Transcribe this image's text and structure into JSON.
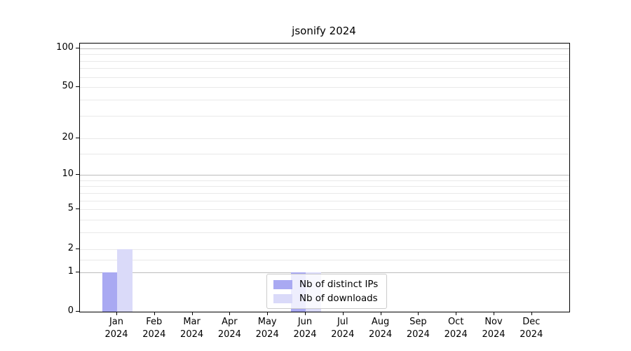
{
  "chart_data": {
    "type": "bar",
    "title": "jsonify 2024",
    "xlabel": "",
    "ylabel": "",
    "categories": [
      "Jan 2024",
      "Feb 2024",
      "Mar 2024",
      "Apr 2024",
      "May 2024",
      "Jun 2024",
      "Jul 2024",
      "Aug 2024",
      "Sep 2024",
      "Oct 2024",
      "Nov 2024",
      "Dec 2024"
    ],
    "series": [
      {
        "name": "Nb of distinct IPs",
        "color": "#a9a9f2",
        "values": [
          1,
          0,
          0,
          0,
          0,
          1,
          0,
          0,
          0,
          0,
          0,
          0
        ]
      },
      {
        "name": "Nb of downloads",
        "color": "#dadaf9",
        "values": [
          2,
          0,
          0,
          0,
          0,
          1,
          0,
          0,
          0,
          0,
          0,
          0
        ]
      }
    ],
    "yscale": "log1p",
    "ylim": [
      0,
      108
    ],
    "yticks": [
      0,
      1,
      2,
      5,
      10,
      20,
      50,
      100
    ],
    "major_gridlines": [
      1,
      10,
      100
    ],
    "mid_gridlines": [
      2,
      5,
      20,
      50
    ],
    "minor_gridlines": [
      1.5,
      3,
      4,
      6,
      7,
      8,
      9,
      15,
      30,
      40,
      60,
      70,
      80,
      90
    ],
    "grid": true,
    "legend": {
      "position": "lower-center",
      "entries": [
        "Nb of distinct IPs",
        "Nb of downloads"
      ]
    }
  },
  "colors": {
    "background": "#ffffff",
    "axis": "#000000",
    "major_grid": "#bcbcbc",
    "minor_grid": "#e9e9e9",
    "legend_border": "#cccccc",
    "bar_distinct_ips": "#a9a9f2",
    "bar_downloads": "#dadaf9"
  }
}
